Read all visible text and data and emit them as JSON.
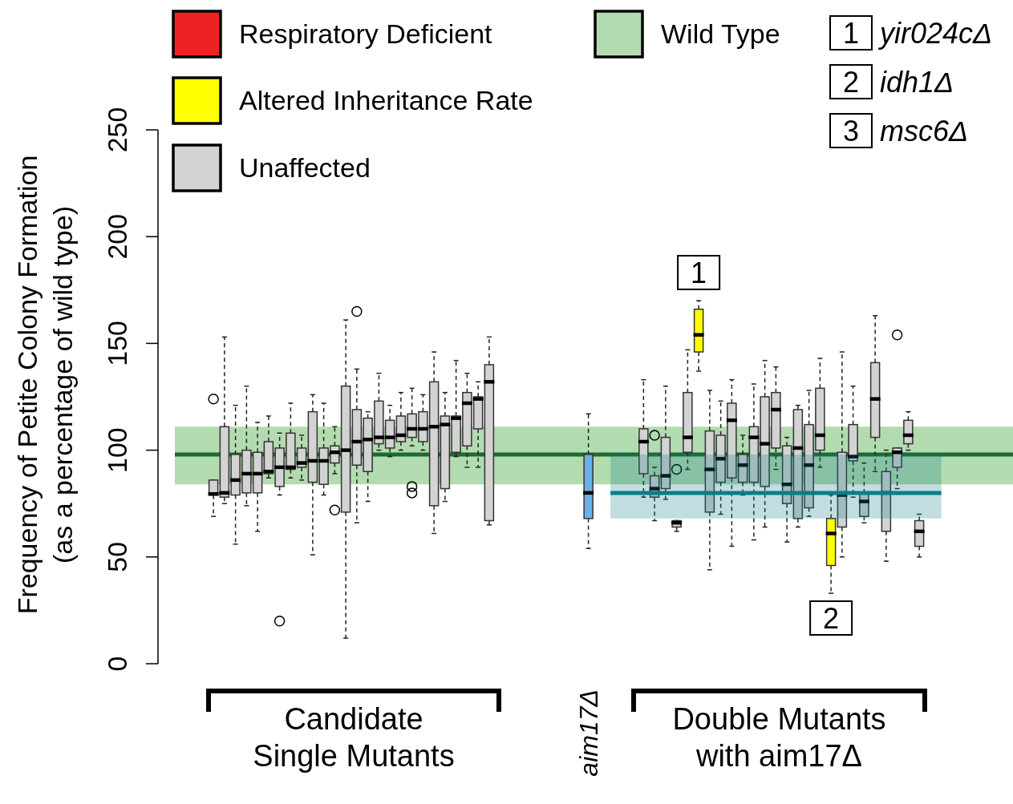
{
  "chart_data": {
    "type": "box",
    "ylabel": "Frequency of Petite Colony Formation (as a percentage of wild type)",
    "categories": [
      null,
      null,
      null,
      null,
      null,
      null,
      null,
      null,
      null,
      null,
      null,
      null,
      null,
      null,
      null,
      null,
      null,
      null,
      null,
      null,
      null,
      null,
      null,
      null,
      null,
      null,
      null,
      null,
      null,
      null,
      null,
      null,
      null,
      null,
      null,
      null,
      null,
      "aim17Δ",
      null,
      null,
      null,
      null,
      null,
      null,
      null,
      null,
      null,
      null,
      null,
      null,
      null,
      null,
      null,
      null,
      null,
      null,
      null,
      null,
      null,
      null,
      null,
      null,
      null,
      null,
      null,
      null,
      null,
      null,
      null,
      null,
      null,
      null,
      null,
      null,
      null,
      null
    ],
    "ylim": [
      0,
      250
    ],
    "yticks": [
      0,
      50,
      100,
      150,
      200,
      250
    ],
    "legend": "top",
    "bands": [
      {
        "axis": "y",
        "from": 84,
        "to": 111,
        "label": "Wild Type",
        "color": "#b3dbb0"
      }
    ],
    "ref_lines": [
      {
        "axis": "y",
        "value": 98,
        "color": "#1b6b30"
      }
    ],
    "series": [
      {
        "name": "Respiratory Deficient",
        "color": "#ee2222",
        "boxes": [
          null,
          null,
          null,
          null,
          null,
          null,
          null,
          null,
          null,
          null,
          null,
          null,
          null,
          null,
          null,
          null,
          null,
          null,
          null,
          null,
          null,
          null,
          null,
          null,
          null,
          null,
          null,
          null,
          null,
          null,
          null,
          null,
          null,
          null,
          null,
          null,
          null,
          null,
          null,
          null,
          null,
          null,
          null,
          null,
          null,
          null,
          null,
          null,
          null,
          null,
          null,
          null,
          null,
          null,
          null,
          null,
          null,
          null,
          null,
          null,
          null,
          null,
          null,
          null,
          null,
          null,
          null,
          null,
          null,
          null,
          null,
          null,
          null,
          null,
          null,
          null
        ]
      },
      {
        "name": "Altered Inheritance Rate",
        "color": "#ffff00",
        "boxes": [
          null,
          null,
          null,
          null,
          null,
          null,
          null,
          null,
          null,
          null,
          null,
          null,
          null,
          null,
          null,
          null,
          null,
          null,
          null,
          null,
          null,
          null,
          null,
          null,
          null,
          null,
          null,
          null,
          null,
          null,
          null,
          null,
          null,
          null,
          null,
          null,
          null,
          null,
          null,
          null,
          null,
          null,
          null,
          null,
          null,
          null,
          null,
          {
            "low": 137,
            "q1": 146,
            "median": 154,
            "q3": 166,
            "high": 170
          },
          null,
          null,
          null,
          null,
          null,
          null,
          null,
          null,
          null,
          null,
          null,
          {
            "low": 33,
            "q1": 46,
            "median": 61,
            "q3": 68,
            "high": 79
          },
          null,
          null,
          null,
          null,
          null,
          null,
          null,
          null,
          null,
          null,
          null,
          null,
          null,
          null,
          null,
          null
        ]
      },
      {
        "name": "Unaffected",
        "color": "#d3d3d3",
        "boxes": [
          null,
          null,
          null,
          {
            "low": 69,
            "q1": 79,
            "median": 79.5,
            "q3": 86,
            "high": 86,
            "outliers": [
              124
            ]
          },
          {
            "low": 75,
            "q1": 78,
            "median": 80,
            "q3": 111,
            "high": 153
          },
          {
            "low": 56,
            "q1": 79,
            "median": 86,
            "q3": 98,
            "high": 121
          },
          {
            "low": 74,
            "q1": 80,
            "median": 89,
            "q3": 100,
            "high": 130
          },
          {
            "low": 62,
            "q1": 80,
            "median": 89,
            "q3": 99,
            "high": 113
          },
          {
            "low": 87,
            "q1": 89,
            "median": 90,
            "q3": 104,
            "high": 116
          },
          {
            "low": 79,
            "q1": 83,
            "median": 92,
            "q3": 101,
            "high": 108,
            "outliers": [
              20
            ]
          },
          {
            "low": 87,
            "q1": 91,
            "median": 92,
            "q3": 108,
            "high": 122
          },
          {
            "low": 86,
            "q1": 92,
            "median": 94,
            "q3": 101,
            "high": 107
          },
          {
            "low": 51,
            "q1": 85,
            "median": 95,
            "q3": 118,
            "high": 126
          },
          {
            "low": 79,
            "q1": 84,
            "median": 95,
            "q3": 101,
            "high": 122
          },
          {
            "low": 89,
            "q1": 94,
            "median": 99,
            "q3": 102,
            "high": 111,
            "outliers": [
              72
            ]
          },
          {
            "low": 12,
            "q1": 71,
            "median": 100,
            "q3": 130,
            "high": 161
          },
          {
            "low": 66,
            "q1": 93,
            "median": 104,
            "q3": 119,
            "high": 138,
            "outliers": [
              165
            ]
          },
          {
            "low": 76,
            "q1": 90,
            "median": 105,
            "q3": 115,
            "high": 118
          },
          {
            "low": 100,
            "q1": 103,
            "median": 106,
            "q3": 123,
            "high": 136
          },
          {
            "low": 97,
            "q1": 101,
            "median": 106,
            "q3": 114,
            "high": 121
          },
          {
            "low": 100,
            "q1": 104,
            "median": 107,
            "q3": 116,
            "high": 127
          },
          {
            "low": 102,
            "q1": 106,
            "median": 110,
            "q3": 117,
            "high": 129,
            "outliers": [
              83,
              80
            ]
          },
          {
            "low": 100,
            "q1": 104,
            "median": 110,
            "q3": 118,
            "high": 126
          },
          {
            "low": 61,
            "q1": 74,
            "median": 111,
            "q3": 132,
            "high": 146
          },
          {
            "low": 76,
            "q1": 82,
            "median": 112,
            "q3": 116,
            "high": 127
          },
          {
            "low": 97,
            "q1": 99,
            "median": 115,
            "q3": 116,
            "high": 142
          },
          {
            "low": 92,
            "q1": 102,
            "median": 122,
            "q3": 127,
            "high": 136
          },
          {
            "low": 92,
            "q1": 110,
            "median": 124,
            "q3": 125,
            "high": 132
          },
          {
            "low": 65,
            "q1": 67,
            "median": 132,
            "q3": 140,
            "high": 153
          },
          null,
          null,
          null,
          null,
          null,
          null,
          null,
          null,
          null,
          null,
          null,
          null,
          null,
          {
            "low": 78,
            "q1": 89,
            "median": 104,
            "q3": 110,
            "high": 133
          },
          {
            "low": 67,
            "q1": 78,
            "median": 82,
            "q3": 88,
            "high": 92,
            "outliers": [
              107
            ]
          },
          {
            "low": 77,
            "q1": 82,
            "median": 88,
            "q3": 106,
            "high": 130
          },
          {
            "low": 62,
            "q1": 64,
            "median": 66,
            "q3": 67,
            "high": 67,
            "outliers": [
              91
            ]
          },
          {
            "low": 91,
            "q1": 99,
            "median": 106,
            "q3": 127,
            "high": 147
          },
          null,
          {
            "low": 44,
            "q1": 71,
            "median": 91,
            "q3": 109,
            "high": 128
          },
          {
            "low": 70,
            "q1": 85,
            "median": 96,
            "q3": 107,
            "high": 123
          },
          {
            "low": 55,
            "q1": 87,
            "median": 114,
            "q3": 122,
            "high": 133
          },
          {
            "low": 79,
            "q1": 85,
            "median": 93,
            "q3": 98,
            "high": 107
          },
          {
            "low": 58,
            "q1": 85,
            "median": 106,
            "q3": 111,
            "high": 131
          },
          {
            "low": 64,
            "q1": 83,
            "median": 103,
            "q3": 125,
            "high": 142
          },
          {
            "low": 91,
            "q1": 101,
            "median": 119,
            "q3": 127,
            "high": 139
          },
          {
            "low": 57,
            "q1": 75,
            "median": 84,
            "q3": 102,
            "high": 106
          },
          {
            "low": 64,
            "q1": 68,
            "median": 101,
            "q3": 119,
            "high": 121
          },
          {
            "low": 69,
            "q1": 73,
            "median": 93,
            "q3": 112,
            "high": 128
          },
          {
            "low": 92,
            "q1": 100,
            "median": 107,
            "q3": 129,
            "high": 143
          },
          null,
          {
            "low": 50,
            "q1": 64,
            "median": 79,
            "q3": 99,
            "high": 146
          },
          {
            "low": 78,
            "q1": 95,
            "median": 97,
            "q3": 112,
            "high": 130
          },
          {
            "low": 66,
            "q1": 69,
            "median": 76,
            "q3": 80,
            "high": 94
          },
          {
            "low": 90,
            "q1": 106,
            "median": 124,
            "q3": 141,
            "high": 163
          },
          {
            "low": 48,
            "q1": 62,
            "median": 80,
            "q3": 90,
            "high": 100
          },
          {
            "low": 82,
            "q1": 92,
            "median": 99,
            "q3": 101,
            "high": 101,
            "outliers": [
              154
            ]
          },
          {
            "low": 100,
            "q1": 103,
            "median": 107,
            "q3": 114,
            "high": 118
          },
          {
            "low": 50,
            "q1": 55,
            "median": 62,
            "q3": 67,
            "high": 70
          },
          null,
          null,
          null,
          null,
          null,
          null,
          null,
          null
        ]
      },
      {
        "color": "#6cb0e6",
        "boxes": [
          null,
          null,
          null,
          null,
          null,
          null,
          null,
          null,
          null,
          null,
          null,
          null,
          null,
          null,
          null,
          null,
          null,
          null,
          null,
          null,
          null,
          null,
          null,
          null,
          null,
          null,
          null,
          null,
          null,
          null,
          null,
          null,
          null,
          null,
          null,
          null,
          null,
          {
            "low": 54,
            "q1": 68,
            "median": 80,
            "q3": 98,
            "high": 117
          },
          null,
          null,
          null,
          null,
          null,
          null,
          null,
          null,
          null,
          null,
          null,
          null,
          null,
          null,
          null,
          null,
          null,
          null,
          null,
          null,
          null,
          null,
          null,
          null,
          null,
          null,
          null,
          null,
          null,
          null,
          null,
          null,
          null,
          null,
          null,
          null,
          null,
          null
        ]
      },
      {
        "type": "line",
        "color": "#0e7c86",
        "values": [
          null,
          null,
          null,
          null,
          null,
          null,
          null,
          null,
          null,
          null,
          null,
          null,
          null,
          null,
          null,
          null,
          null,
          null,
          null,
          null,
          null,
          null,
          null,
          null,
          null,
          null,
          null,
          null,
          null,
          null,
          null,
          null,
          null,
          null,
          null,
          null,
          null,
          null,
          null,
          80,
          80,
          80,
          80,
          80,
          80,
          80,
          80,
          80,
          80,
          80,
          80,
          80,
          80,
          80,
          80,
          80,
          80,
          80,
          80,
          80,
          80,
          80,
          80,
          80,
          80,
          80,
          80,
          80,
          80,
          80,
          null,
          null,
          null,
          null,
          null,
          null
        ],
        "lower": [
          null,
          null,
          null,
          null,
          null,
          null,
          null,
          null,
          null,
          null,
          null,
          null,
          null,
          null,
          null,
          null,
          null,
          null,
          null,
          null,
          null,
          null,
          null,
          null,
          null,
          null,
          null,
          null,
          null,
          null,
          null,
          null,
          null,
          null,
          null,
          null,
          null,
          null,
          null,
          68,
          68,
          68,
          68,
          68,
          68,
          68,
          68,
          68,
          68,
          68,
          68,
          68,
          68,
          68,
          68,
          68,
          68,
          68,
          68,
          68,
          68,
          68,
          68,
          68,
          68,
          68,
          68,
          68,
          68,
          68,
          null,
          null,
          null,
          null,
          null,
          null
        ],
        "upper": [
          null,
          null,
          null,
          null,
          null,
          null,
          null,
          null,
          null,
          null,
          null,
          null,
          null,
          null,
          null,
          null,
          null,
          null,
          null,
          null,
          null,
          null,
          null,
          null,
          null,
          null,
          null,
          null,
          null,
          null,
          null,
          null,
          null,
          null,
          null,
          null,
          null,
          null,
          null,
          98,
          98,
          98,
          98,
          98,
          98,
          98,
          98,
          98,
          98,
          98,
          98,
          98,
          98,
          98,
          98,
          98,
          98,
          98,
          98,
          98,
          98,
          98,
          98,
          98,
          98,
          98,
          98,
          98,
          98,
          98,
          null,
          null,
          null,
          null,
          null,
          null
        ]
      }
    ],
    "annotations": [
      "Candidate Single Mutants",
      "Double Mutants with aim17Δ",
      "1",
      "2",
      "1 yir024cΔ",
      "2 idh1Δ",
      "3 msc6Δ"
    ]
  }
}
